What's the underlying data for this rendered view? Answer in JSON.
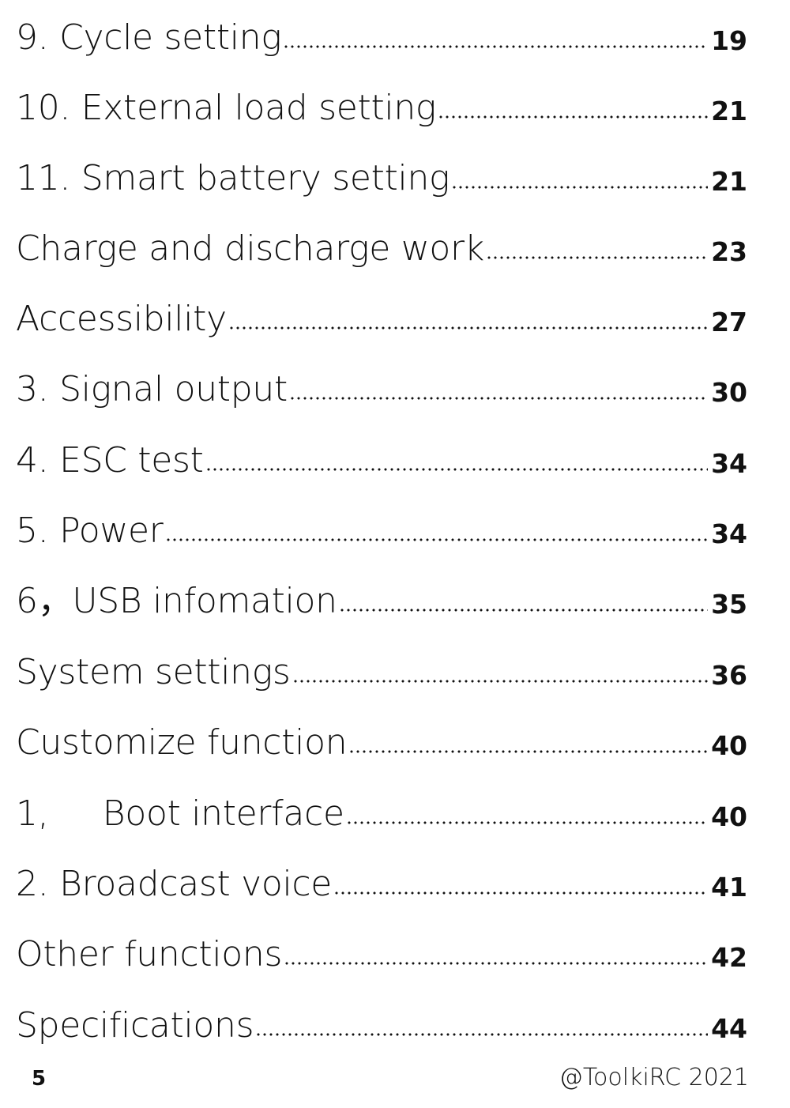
{
  "toc": {
    "entries": [
      {
        "title": "9. Cycle setting",
        "page": "19"
      },
      {
        "title": "10. External load setting",
        "page": "21"
      },
      {
        "title": "11. Smart battery setting",
        "page": "21"
      },
      {
        "title": "Charge and discharge work",
        "page": "23"
      },
      {
        "title": "Accessibility",
        "page": "27"
      },
      {
        "title": "3. Signal output",
        "page": "30"
      },
      {
        "title": "4. ESC test",
        "page": "34"
      },
      {
        "title": "5. Power",
        "page": "34"
      },
      {
        "title": "6，USB infomation",
        "page": "35"
      },
      {
        "title": "System settings",
        "page": "36"
      },
      {
        "title": "Customize function",
        "page": "40"
      },
      {
        "title": "1,     Boot interface",
        "page": "40"
      },
      {
        "title": "2. Broadcast voice",
        "page": "41"
      },
      {
        "title": "Other functions",
        "page": "42"
      },
      {
        "title": "Specifications",
        "page": "44"
      }
    ]
  },
  "footer": {
    "page_number": "5",
    "copyright": "@ToolkiRC 2021"
  }
}
